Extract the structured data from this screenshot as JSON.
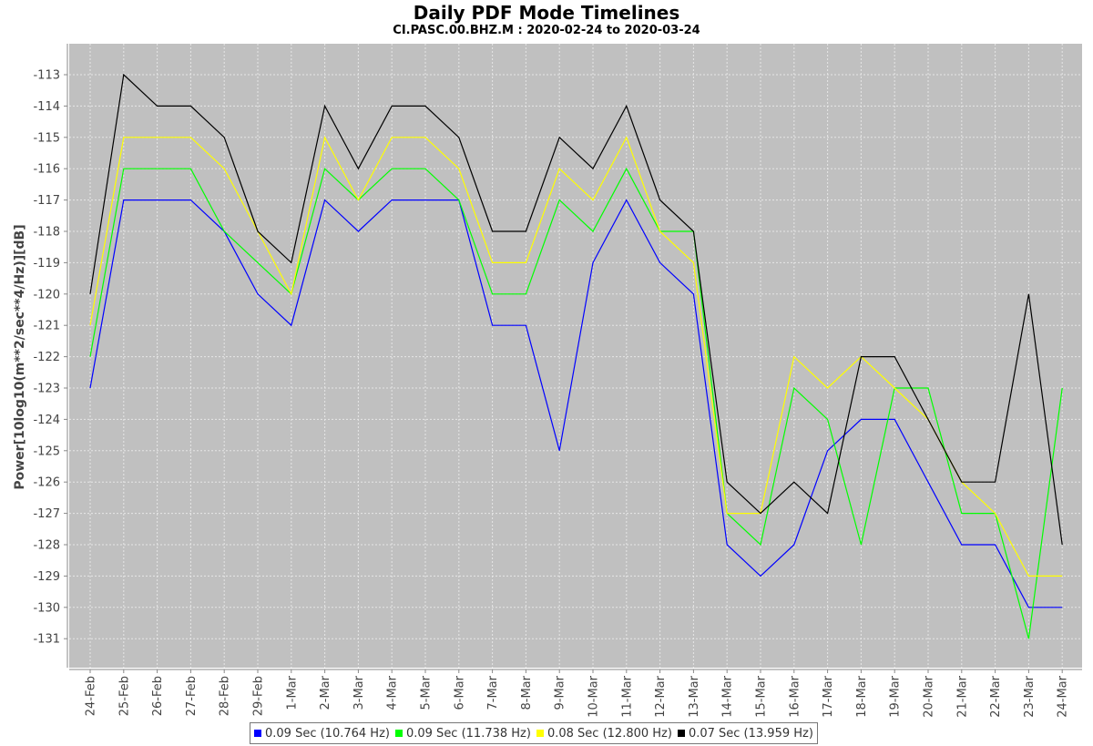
{
  "chart_data": {
    "type": "line",
    "title": "Daily PDF Mode Timelines",
    "subtitle": "CI.PASC.00.BHZ.M : 2020-02-24 to 2020-03-24",
    "ylabel": "Power[10log10(m**2/sec**4/Hz)][dB]",
    "xlabel": "",
    "ylim": [
      -131.8,
      -112
    ],
    "yticks": [
      -113,
      -114,
      -115,
      -116,
      -117,
      -118,
      -119,
      -120,
      -121,
      -122,
      -123,
      -124,
      -125,
      -126,
      -127,
      -128,
      -129,
      -130,
      -131
    ],
    "categories": [
      "24-Feb",
      "25-Feb",
      "26-Feb",
      "27-Feb",
      "28-Feb",
      "29-Feb",
      "1-Mar",
      "2-Mar",
      "3-Mar",
      "4-Mar",
      "5-Mar",
      "6-Mar",
      "7-Mar",
      "8-Mar",
      "9-Mar",
      "10-Mar",
      "11-Mar",
      "12-Mar",
      "13-Mar",
      "14-Mar",
      "15-Mar",
      "16-Mar",
      "17-Mar",
      "18-Mar",
      "19-Mar",
      "20-Mar",
      "21-Mar",
      "22-Mar",
      "23-Mar",
      "24-Mar"
    ],
    "grid": true,
    "legend_position": "bottom",
    "plot_background": "#c0c0c0",
    "series": [
      {
        "name": "0.09 Sec (10.764 Hz)",
        "color": "#0000ff",
        "values": [
          -123,
          -117,
          -117,
          -117,
          -118,
          -120,
          -121,
          -117,
          -118,
          -117,
          -117,
          -117,
          -121,
          -121,
          -125,
          -119,
          -117,
          -119,
          -120,
          -128,
          -129,
          -128,
          -125,
          -124,
          -124,
          -126,
          -128,
          -128,
          -130,
          -130
        ]
      },
      {
        "name": "0.09 Sec (11.738 Hz)",
        "color": "#00ff00",
        "values": [
          -122,
          -116,
          -116,
          -116,
          -118,
          -119,
          -120,
          -116,
          -117,
          -116,
          -116,
          -117,
          -120,
          -120,
          -117,
          -118,
          -116,
          -118,
          -118,
          -127,
          -128,
          -123,
          -124,
          -128,
          -123,
          -123,
          -127,
          -127,
          -131,
          -123
        ]
      },
      {
        "name": "0.08 Sec (12.800 Hz)",
        "color": "#ffff00",
        "values": [
          -121,
          -115,
          -115,
          -115,
          -116,
          -118,
          -120,
          -115,
          -117,
          -115,
          -115,
          -116,
          -119,
          -119,
          -116,
          -117,
          -115,
          -118,
          -119,
          -127,
          -127,
          -122,
          -123,
          -122,
          -123,
          -124,
          -126,
          -127,
          -129,
          -129
        ]
      },
      {
        "name": "0.07 Sec (13.959 Hz)",
        "color": "#000000",
        "values": [
          -120,
          -113,
          -114,
          -114,
          -115,
          -118,
          -119,
          -114,
          -116,
          -114,
          -114,
          -115,
          -118,
          -118,
          -115,
          -116,
          -114,
          -117,
          -118,
          -126,
          -127,
          -126,
          -127,
          -122,
          -122,
          -124,
          -126,
          -126,
          -120,
          -128
        ]
      }
    ]
  }
}
